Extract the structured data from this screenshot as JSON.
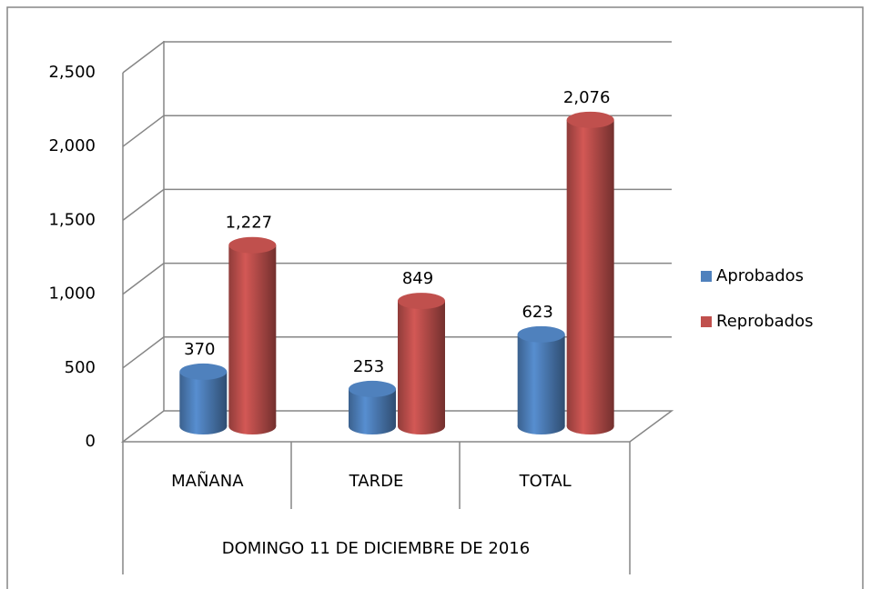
{
  "chart_data": {
    "type": "bar3d",
    "categories": [
      "MAÑANA",
      "TARDE",
      "TOTAL"
    ],
    "group_label": "DOMINGO 11 DE DICIEMBRE DE 2016",
    "series": [
      {
        "name": "Aprobados",
        "color": "#4f81bd",
        "values": [
          370,
          253,
          623
        ],
        "value_labels": [
          "370",
          "253",
          "623"
        ]
      },
      {
        "name": "Reprobados",
        "color": "#c0504d",
        "values": [
          1227,
          849,
          2076
        ],
        "value_labels": [
          "1,227",
          "849",
          "2,076"
        ]
      }
    ],
    "ylim": [
      0,
      2500
    ],
    "yticks": [
      0,
      500,
      {
        "value": 1000,
        "label": "1,000"
      },
      {
        "value": 1500,
        "label": "1,500"
      },
      {
        "value": 2000,
        "label": "2,000"
      },
      {
        "value": 2500,
        "label": "2,500"
      }
    ],
    "grid": true,
    "legend": "right"
  }
}
